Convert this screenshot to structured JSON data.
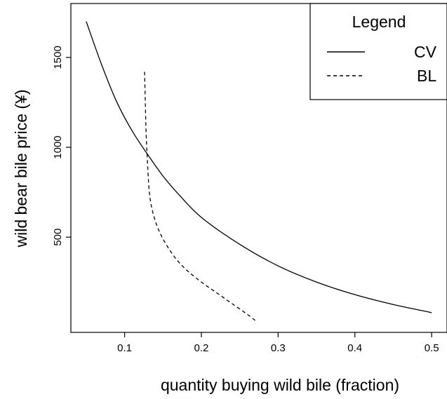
{
  "chart_data": {
    "type": "line",
    "title": "",
    "xlabel": "quantity buying wild bile (fraction)",
    "ylabel": "wild bear bile price (¥)",
    "xlim": [
      0.03,
      0.52
    ],
    "ylim": [
      -30,
      1800
    ],
    "x_ticks": [
      {
        "value": 0.1,
        "label": "0.1"
      },
      {
        "value": 0.2,
        "label": "0.2"
      },
      {
        "value": 0.3,
        "label": "0.3"
      },
      {
        "value": 0.4,
        "label": "0.4"
      },
      {
        "value": 0.5,
        "label": "0.5"
      }
    ],
    "y_ticks": [
      {
        "value": 500,
        "label": "500"
      },
      {
        "value": 1000,
        "label": "1000"
      },
      {
        "value": 1500,
        "label": "1500"
      }
    ],
    "grid": false,
    "legend": {
      "title": "Legend",
      "position": "top-right"
    },
    "series": [
      {
        "name": "CV",
        "line_style": "solid",
        "color": "#000000",
        "x": [
          0.05,
          0.07,
          0.09,
          0.11,
          0.13,
          0.15,
          0.17,
          0.2,
          0.25,
          0.3,
          0.35,
          0.4,
          0.45,
          0.5
        ],
        "y": [
          1700,
          1460,
          1250,
          1090,
          960,
          840,
          740,
          610,
          460,
          340,
          250,
          180,
          125,
          80
        ]
      },
      {
        "name": "BL",
        "line_style": "dashed",
        "color": "#000000",
        "x": [
          0.126,
          0.127,
          0.128,
          0.13,
          0.133,
          0.14,
          0.15,
          0.165,
          0.18,
          0.2,
          0.22,
          0.24,
          0.26,
          0.272
        ],
        "y": [
          1420,
          1250,
          1080,
          900,
          720,
          590,
          490,
          390,
          320,
          250,
          190,
          130,
          70,
          30
        ]
      }
    ]
  }
}
